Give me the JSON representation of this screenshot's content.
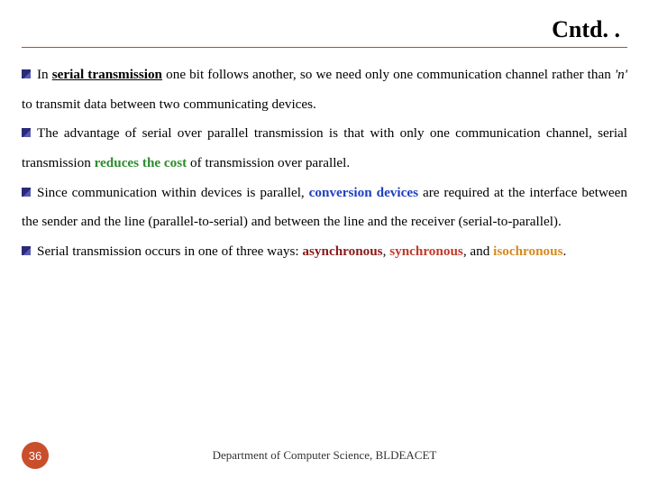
{
  "title": "Cntd. .",
  "paragraphs": {
    "p1a": "In ",
    "p1b": "serial transmission",
    "p1c": " one bit follows another, so we need only one communication channel rather than ",
    "p1d": "'n'",
    "p1e": " to transmit data between two communicating devices.",
    "p2a": "The advantage of serial over parallel transmission is that with only one communication channel, serial transmission ",
    "p2b": "reduces the cost",
    "p2c": " of transmission over parallel.",
    "p3a": "Since communication within devices is parallel, ",
    "p3b": "conversion devices",
    "p3c": " are required at the interface between the sender and the line (parallel-to-serial) and between the line and the receiver (serial-to-parallel).",
    "p4a": "Serial transmission occurs in one of three ways: ",
    "p4b": "asynchronous",
    "p4c": ", ",
    "p4d": "synchronous",
    "p4e": ", and ",
    "p4f": "isochronous",
    "p4g": "."
  },
  "footer": {
    "page": "36",
    "dept": "Department of Computer Science, BLDEACET"
  },
  "colors": {
    "rule": "#bc4a26",
    "badge": "#c94f2c",
    "green": "#2e8b2e",
    "blue": "#1f3fbf",
    "red_dark": "#8b1a1a",
    "red": "#c0392b",
    "orange": "#d68b1f"
  }
}
